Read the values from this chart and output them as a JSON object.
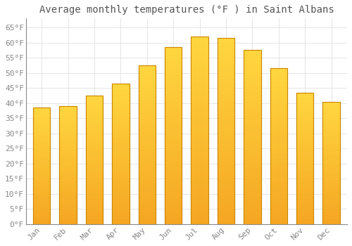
{
  "title": "Average monthly temperatures (°F ) in Saint Albans",
  "months": [
    "Jan",
    "Feb",
    "Mar",
    "Apr",
    "May",
    "Jun",
    "Jul",
    "Aug",
    "Sep",
    "Oct",
    "Nov",
    "Dec"
  ],
  "values": [
    38.5,
    39.0,
    42.5,
    46.5,
    52.5,
    58.5,
    62.0,
    61.5,
    57.5,
    51.5,
    43.5,
    40.5
  ],
  "bar_color_bottom": "#F5A623",
  "bar_color_top": "#FFD740",
  "bar_edge_color": "#CC8800",
  "background_color": "#FFFFFF",
  "grid_color": "#E0E0E0",
  "ylim": [
    0,
    68
  ],
  "ytick_step": 5,
  "title_fontsize": 10,
  "tick_fontsize": 8,
  "title_color": "#555555",
  "tick_color": "#888888"
}
